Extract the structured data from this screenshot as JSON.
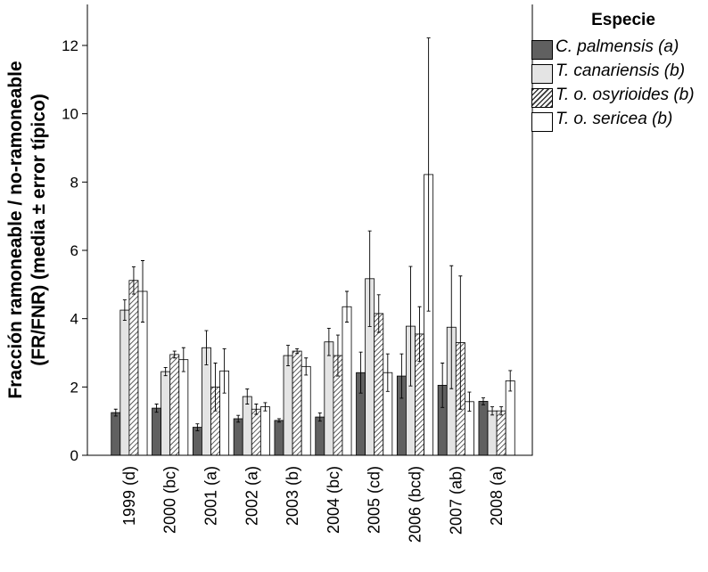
{
  "chart_data": {
    "type": "bar",
    "y_label": [
      "Fracción ramoneable / no-ramoneable",
      "(FR/FNR) (media ± error típico)"
    ],
    "legend_title": "Especie",
    "categories": [
      "1999 (d)",
      "2000 (bc)",
      "2001 (a)",
      "2002 (a)",
      "2003 (b)",
      "2004 (bc)",
      "2005 (cd)",
      "2006 (bcd)",
      "2007 (ab)",
      "2008 (a)"
    ],
    "series": [
      {
        "name": "C. palmensis (a)",
        "color": "#606060",
        "hatch": false,
        "values": [
          1.25,
          1.38,
          0.82,
          1.07,
          1.02,
          1.12,
          2.42,
          2.32,
          2.05,
          1.58
        ],
        "errors": [
          0.1,
          0.12,
          0.1,
          0.1,
          0.05,
          0.12,
          0.6,
          0.65,
          0.65,
          0.1
        ]
      },
      {
        "name": "T. canariensis (b)",
        "color": "#e4e4e4",
        "hatch": false,
        "values": [
          4.25,
          2.45,
          3.15,
          1.72,
          2.92,
          3.32,
          5.17,
          3.78,
          3.75,
          1.3
        ],
        "errors": [
          0.3,
          0.12,
          0.5,
          0.22,
          0.3,
          0.4,
          1.4,
          1.75,
          1.8,
          0.12
        ]
      },
      {
        "name": "T. o. osyrioides (b)",
        "color": "#ffffff",
        "hatch": true,
        "values": [
          5.12,
          2.95,
          2.0,
          1.35,
          3.05,
          2.92,
          4.15,
          3.55,
          3.3,
          1.3
        ],
        "errors": [
          0.4,
          0.1,
          0.7,
          0.15,
          0.07,
          0.6,
          0.55,
          0.8,
          1.95,
          0.12
        ]
      },
      {
        "name": "T. o. sericea (b)",
        "color": "#ffffff",
        "hatch": false,
        "values": [
          4.8,
          2.8,
          2.47,
          1.42,
          2.6,
          4.35,
          2.42,
          8.22,
          1.57,
          2.18
        ],
        "errors": [
          0.9,
          0.35,
          0.65,
          0.12,
          0.25,
          0.45,
          0.55,
          4.0,
          0.28,
          0.3
        ]
      }
    ],
    "ylim": [
      0,
      13.2
    ],
    "yticks": [
      0,
      2,
      4,
      6,
      8,
      10,
      12
    ],
    "legend": "right"
  }
}
